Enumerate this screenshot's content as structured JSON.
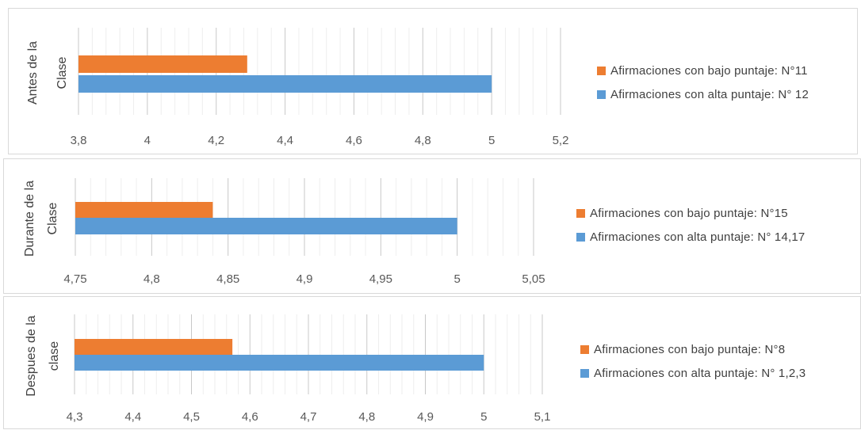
{
  "chart_data": [
    {
      "type": "bar",
      "orientation": "horizontal",
      "ylabel_lines": [
        "Antes de la",
        "Clase"
      ],
      "xlim": [
        3.8,
        5.2
      ],
      "xticks": [
        "3,8",
        "4",
        "4,2",
        "4,4",
        "4,6",
        "4,8",
        "5",
        "5,2"
      ],
      "grid": true,
      "legend_position": "right",
      "series": [
        {
          "name": "Afirmaciones con bajo puntaje: N°11",
          "value": 4.29,
          "color": "#ED7D31"
        },
        {
          "name": "Afirmaciones con alta puntaje: N° 12",
          "value": 5.0,
          "color": "#5B9BD5"
        }
      ]
    },
    {
      "type": "bar",
      "orientation": "horizontal",
      "ylabel_lines": [
        "Durante de la",
        "Clase"
      ],
      "xlim": [
        4.75,
        5.05
      ],
      "xticks": [
        "4,75",
        "4,8",
        "4,85",
        "4,9",
        "4,95",
        "5",
        "5,05"
      ],
      "grid": true,
      "legend_position": "right",
      "series": [
        {
          "name": "Afirmaciones con bajo puntaje: N°15",
          "value": 4.84,
          "color": "#ED7D31"
        },
        {
          "name": "Afirmaciones con alta puntaje: N° 14,17",
          "value": 5.0,
          "color": "#5B9BD5"
        }
      ]
    },
    {
      "type": "bar",
      "orientation": "horizontal",
      "ylabel_lines": [
        "Despues de la",
        "clase"
      ],
      "xlim": [
        4.3,
        5.1
      ],
      "xticks": [
        "4,3",
        "4,4",
        "4,5",
        "4,6",
        "4,7",
        "4,8",
        "4,9",
        "5",
        "5,1"
      ],
      "grid": true,
      "legend_position": "right",
      "series": [
        {
          "name": "Afirmaciones con bajo puntaje: N°8",
          "value": 4.57,
          "color": "#ED7D31"
        },
        {
          "name": "Afirmaciones con alta puntaje: N° 1,2,3",
          "value": 5.0,
          "color": "#5B9BD5"
        }
      ]
    }
  ]
}
